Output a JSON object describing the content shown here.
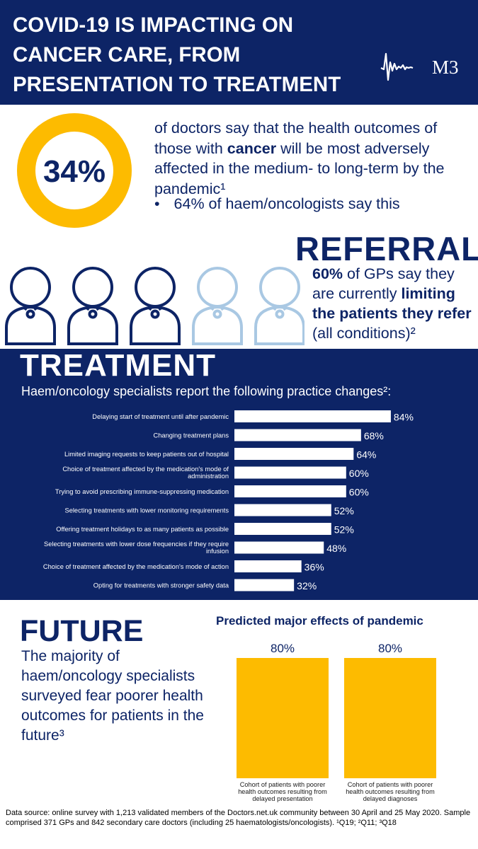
{
  "header": {
    "title": "COVID-19 IS IMPACTING ON CANCER CARE, FROM PRESENTATION TO TREATMENT",
    "logo_text": "M3"
  },
  "donut_stat": {
    "value": "34%",
    "fraction": 1.0,
    "text_pre": "of doctors say that the health outcomes of those with ",
    "text_bold": "cancer",
    "text_post": " will be most adversely affected in the medium- to long-term by the pandemic¹",
    "bullet": "•",
    "bullet_text": "64% of haem/oncologists say this"
  },
  "referral": {
    "title": "REFERRAL",
    "pct": "60%",
    "text_1": " of GPs say they are currently ",
    "bold": "limiting the patients they refer",
    "text_2": " (all conditions)²",
    "icons": {
      "filled": 3,
      "faded": 2,
      "total": 5
    }
  },
  "treatment": {
    "title": "TREATMENT",
    "subtitle": "Haem/oncology  specialists report the following practice changes²:"
  },
  "future": {
    "title": "FUTURE",
    "text": "The majority of haem/oncology specialists surveyed fear poorer health outcomes for patients in the future³",
    "pred_title": "Predicted major effects of pandemic"
  },
  "footer": {
    "text": "Data source: online survey with 1,213 validated members of the Doctors.net.uk community between 30 April and 25 May 2020. Sample comprised 371 GPs and 842 secondary care doctors (including 25 haematologists/oncologists). ¹Q19; ²Q11; ³Q18"
  },
  "colors": {
    "navy": "#0d2466",
    "gold": "#fdbb00",
    "light_blue": "#a9c8e3",
    "white": "#ffffff"
  },
  "chart_data": [
    {
      "type": "bar",
      "orientation": "horizontal",
      "categories": [
        "Delaying start of treatment until after pandemic",
        "Changing treatment plans",
        "Limited imaging requests to keep patients out of hospital",
        "Choice of treatment affected by the medication's mode of administration",
        "Trying to avoid prescribing immune-suppressing medication",
        "Selecting treatments with lower monitoring requirements",
        "Offering treatment holidays to as many patients as possible",
        "Selecting treatments with lower dose frequencies if they require infusion",
        "Choice of treatment affected by the medication's mode of action",
        "Opting for treatments with stronger safety data"
      ],
      "values": [
        84,
        68,
        64,
        60,
        60,
        52,
        52,
        48,
        36,
        32
      ],
      "value_labels": [
        "84%",
        "68%",
        "64%",
        "60%",
        "60%",
        "52%",
        "52%",
        "48%",
        "36%",
        "32%"
      ],
      "xlim": [
        0,
        100
      ]
    },
    {
      "type": "bar",
      "title": "Predicted major effects of pandemic",
      "categories": [
        "Cohort of patients with poorer health outcomes resulting from delayed presentation",
        "Cohort of patients with poorer health outcomes resulting from delayed diagnoses"
      ],
      "values": [
        80,
        80
      ],
      "value_labels": [
        "80%",
        "80%"
      ],
      "ylim": [
        0,
        100
      ]
    }
  ]
}
